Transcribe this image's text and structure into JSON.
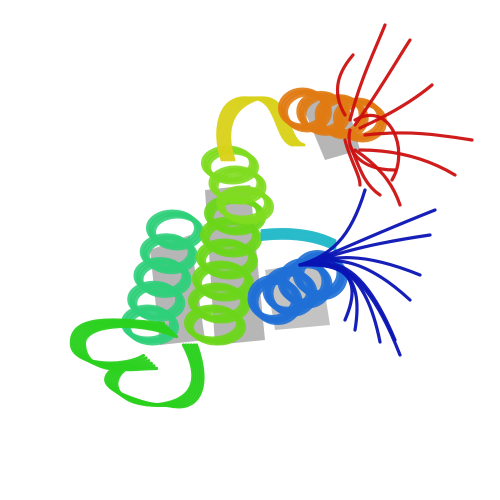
{
  "figure": {
    "subject": "protein-structure-ensemble-cartoon",
    "background_color": "#ffffff",
    "colors": {
      "n_terminus_tail": "#0a14b4",
      "n_terminal_helix": "#1f6fd6",
      "cyan_linker": "#22b8c8",
      "helix_2_teal": "#2fcf7a",
      "loop_green": "#2ad11e",
      "helix_3_lime": "#6bd61a",
      "helix_top_lime": "#7fdc1f",
      "linker_yellow": "#d9d21a",
      "helix_4_orange": "#e07a12",
      "c_terminus_tail": "#cc1010",
      "shadow_gray": "#7a7a7a"
    }
  }
}
